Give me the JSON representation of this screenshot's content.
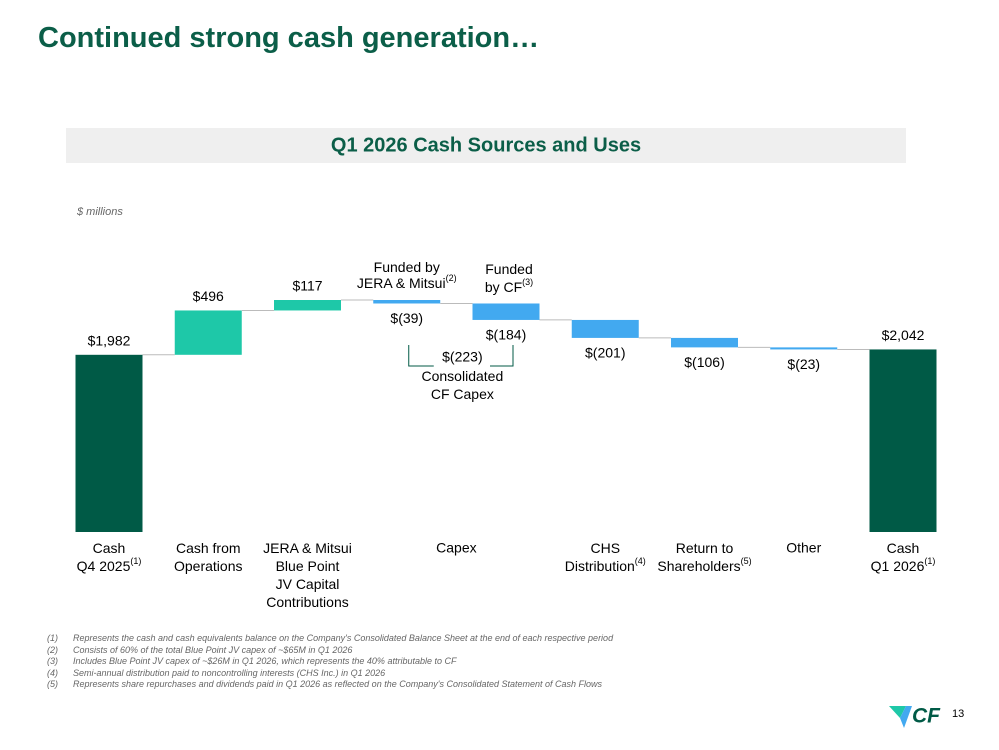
{
  "title": "Continued strong cash generation…",
  "chart_data": {
    "type": "waterfall",
    "title": "Q1 2026 Cash Sources and Uses",
    "unit_label": "$ millions",
    "categories": [
      "Cash\nQ4 2025",
      "Cash from\nOperations",
      "JERA & Mitsui\nBlue Point\nJV Capital\nContributions",
      "Capex",
      null,
      "CHS\nDistribution",
      "Return to\nShareholders",
      "Other",
      "Cash\nQ1 2026"
    ],
    "category_notes": [
      "(1)",
      null,
      null,
      null,
      null,
      "(4)",
      "(5)",
      null,
      "(1)"
    ],
    "values": [
      1982,
      496,
      117,
      -39,
      -184,
      -201,
      -106,
      -23,
      2042
    ],
    "value_labels": [
      "$1,982",
      "$496",
      "$117",
      "$(39)",
      "$(184)",
      "$(201)",
      "$(106)",
      "$(23)",
      "$2,042"
    ],
    "measure": [
      "total",
      "relative",
      "relative",
      "relative",
      "relative",
      "relative",
      "relative",
      "relative",
      "total"
    ],
    "colors": {
      "total": "#005a46",
      "increase": "#1ec8a8",
      "decrease": "#42a9f0"
    },
    "annotations": {
      "jera_funded": {
        "text": "Funded by\nJERA & Mitsui",
        "ref": "(2)"
      },
      "cf_funded": {
        "text": "Funded\nby CF",
        "ref": "(3)"
      },
      "consolidated": {
        "label": "$(223)",
        "text": "Consolidated\nCF Capex"
      }
    }
  },
  "footnotes": [
    {
      "marker": "(1)",
      "text": "Represents the cash and cash equivalents balance on the Company's Consolidated Balance Sheet at the end of each respective period"
    },
    {
      "marker": "(2)",
      "text": "Consists of 60% of the total Blue Point JV capex of ~$65M in Q1 2026"
    },
    {
      "marker": "(3)",
      "text": "Includes Blue Point JV capex of ~$26M in Q1 2026, which represents the 40% attributable to CF"
    },
    {
      "marker": "(4)",
      "text": "Semi-annual distribution paid to noncontrolling interests (CHS Inc.) in Q1 2026"
    },
    {
      "marker": "(5)",
      "text": "Represents share repurchases and dividends paid in Q1 2026 as reflected on the Company's Consolidated Statement of Cash Flows"
    }
  ],
  "logo_text": "CF",
  "page_number": "13"
}
